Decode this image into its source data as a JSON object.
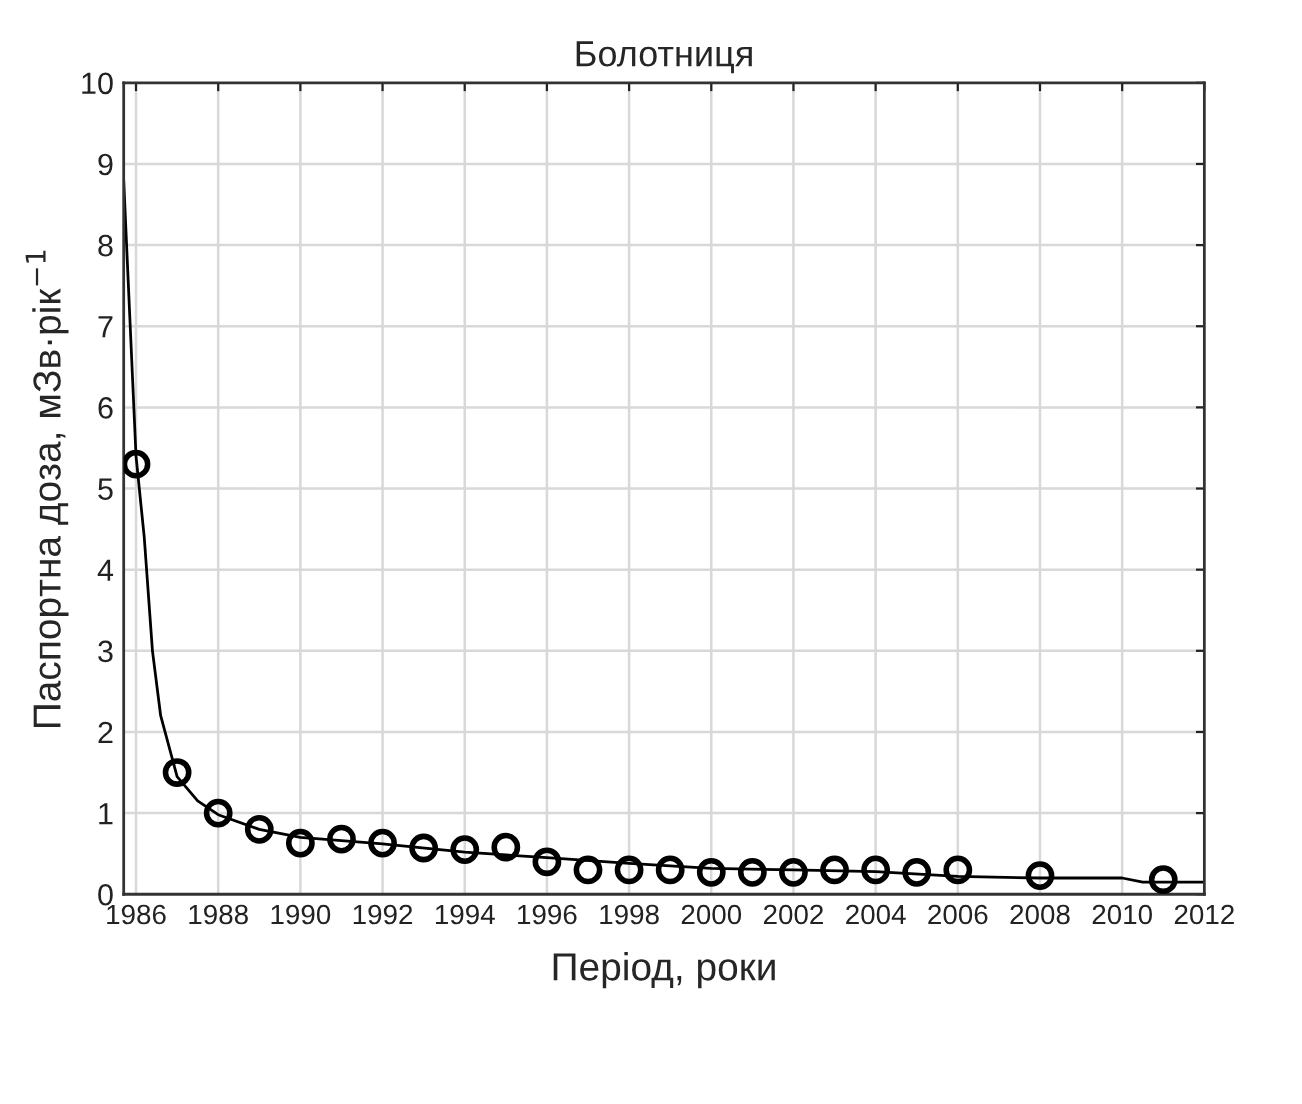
{
  "chart_data": {
    "type": "scatter",
    "title": "Болотниця",
    "xlabel": "Період, роки",
    "ylabel": "Паспортна доза, мЗв·рік$^{−1}$",
    "xlim": [
      1985.7,
      2012
    ],
    "xticks": [
      1986,
      1988,
      1990,
      1992,
      1994,
      1996,
      1998,
      2000,
      2002,
      2004,
      2006,
      2008,
      2010,
      2012
    ],
    "ylim": [
      0,
      10
    ],
    "yticks": [
      0,
      1,
      2,
      3,
      4,
      5,
      6,
      7,
      8,
      9,
      10
    ],
    "grid": true,
    "legend": false,
    "series": [
      {
        "color": "#000000",
        "marker": "circle",
        "x": [
          1986,
          1987,
          1988,
          1989,
          1990,
          1991,
          1992,
          1993,
          1994,
          1995,
          1996,
          1997,
          1998,
          1999,
          2000,
          2001,
          2002,
          2003,
          2004,
          2005,
          2006,
          2008,
          2011
        ],
        "values": [
          5.3,
          1.5,
          1.0,
          0.8,
          0.63,
          0.68,
          0.63,
          0.57,
          0.55,
          0.58,
          0.4,
          0.3,
          0.3,
          0.3,
          0.27,
          0.27,
          0.27,
          0.3,
          0.3,
          0.27,
          0.3,
          0.23,
          0.18
        ]
      },
      {
        "type": "line",
        "color": "#000000",
        "marker": "none",
        "line_style": "solid",
        "x": [
          1985.7,
          1986.0,
          1986.2,
          1986.4,
          1986.6,
          1987.0,
          1987.5,
          1988,
          1989,
          1990,
          1992,
          1994,
          1996,
          1998,
          2000,
          2002,
          2004,
          2006,
          2008,
          2010,
          2010.5,
          2012
        ],
        "values": [
          8.8,
          5.4,
          4.4,
          3.0,
          2.2,
          1.45,
          1.15,
          0.98,
          0.8,
          0.7,
          0.62,
          0.52,
          0.45,
          0.38,
          0.32,
          0.3,
          0.28,
          0.22,
          0.2,
          0.2,
          0.15,
          0.15
        ]
      }
    ]
  }
}
